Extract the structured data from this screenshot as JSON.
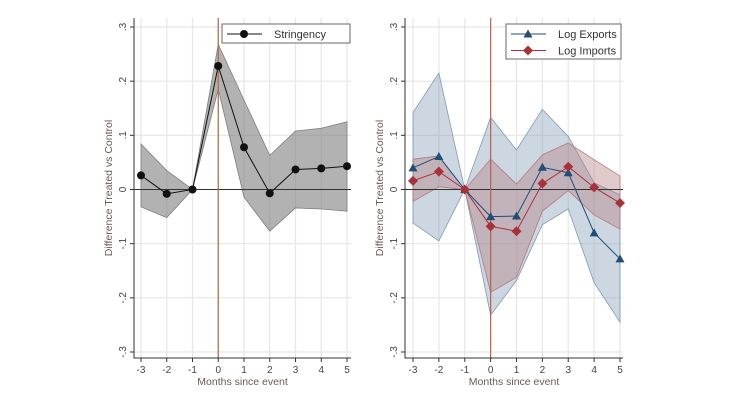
{
  "chart_data": [
    {
      "type": "line",
      "xlabel": "Months since event",
      "ylabel": "Difference Treated vs Control",
      "x": [
        -3,
        -2,
        -1,
        0,
        1,
        2,
        3,
        4,
        5
      ],
      "xlim": [
        -3,
        5
      ],
      "ylim": [
        -0.3,
        0.3
      ],
      "yticks": [
        ".3",
        ".2",
        ".1",
        "0",
        "-.1",
        "-.2",
        "-.3"
      ],
      "yticks_values": [
        0.3,
        0.2,
        0.1,
        0,
        -0.1,
        -0.2,
        -0.3
      ],
      "grid": true,
      "vline_x": 0,
      "legend_position": "top-right",
      "series": [
        {
          "name": "Stringency",
          "color": "#111111",
          "band_color": "#7f7f7f",
          "marker": "circle",
          "values": [
            0.026,
            -0.008,
            0,
            0.228,
            0.078,
            -0.007,
            0.037,
            0.039,
            0.043
          ],
          "ci_lower": [
            -0.032,
            -0.052,
            0,
            0.185,
            -0.014,
            -0.077,
            -0.034,
            -0.036,
            -0.04
          ],
          "ci_upper": [
            0.084,
            0.035,
            0,
            0.268,
            0.165,
            0.063,
            0.108,
            0.113,
            0.125
          ]
        }
      ]
    },
    {
      "type": "line",
      "xlabel": "Months since event",
      "ylabel": "Difference Treated vs Control",
      "x": [
        -3,
        -2,
        -1,
        0,
        1,
        2,
        3,
        4,
        5
      ],
      "xlim": [
        -3,
        5
      ],
      "ylim": [
        -0.3,
        0.3
      ],
      "yticks": [
        ".3",
        ".2",
        ".1",
        "0",
        "-.1",
        "-.2",
        "-.3"
      ],
      "yticks_values": [
        0.3,
        0.2,
        0.1,
        0,
        -0.1,
        -0.2,
        -0.3
      ],
      "grid": true,
      "vline_x": 0,
      "legend_position": "top-right",
      "series": [
        {
          "name": "Log Exports",
          "color": "#1f4e79",
          "band_color": "#7f9bb3",
          "marker": "triangle",
          "values": [
            0.04,
            0.061,
            0,
            -0.05,
            -0.049,
            0.041,
            0.031,
            -0.08,
            -0.128
          ],
          "ci_lower": [
            -0.062,
            -0.095,
            0,
            -0.232,
            -0.168,
            -0.065,
            -0.036,
            -0.172,
            -0.245
          ],
          "ci_upper": [
            0.142,
            0.215,
            0,
            0.133,
            0.073,
            0.148,
            0.098,
            0.012,
            -0.01
          ]
        },
        {
          "name": "Log Imports",
          "color": "#a8323a",
          "band_color": "#b57a7e",
          "marker": "diamond",
          "values": [
            0.016,
            0.033,
            0,
            -0.068,
            -0.077,
            0.011,
            0.042,
            0.004,
            -0.025
          ],
          "ci_lower": [
            -0.022,
            0.005,
            0,
            -0.19,
            -0.162,
            -0.04,
            -0.002,
            -0.047,
            -0.073
          ],
          "ci_upper": [
            0.056,
            0.062,
            0,
            0.056,
            0.01,
            0.064,
            0.086,
            0.055,
            0.025
          ]
        }
      ]
    }
  ]
}
